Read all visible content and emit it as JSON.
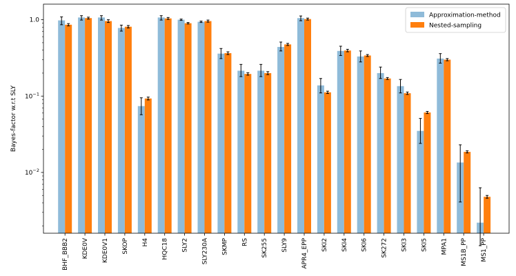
{
  "chart_data": {
    "type": "bar",
    "ylabel": "Bayes-factor w.r.t SLY",
    "yscale": "log",
    "ylim": [
      0.0016,
      1.6
    ],
    "yticks": [
      {
        "value": 0.01,
        "base": "10",
        "exp": "−2"
      },
      {
        "value": 0.1,
        "base": "10",
        "exp": "−1"
      },
      {
        "value": 1,
        "label": "1.0"
      }
    ],
    "legend_position": "top-right",
    "categories": [
      "BHF_BBB2",
      "KDE0V",
      "KDE0V1",
      "SKOP",
      "H4",
      "HQC18",
      "SLY2",
      "SLY230A",
      "SKMP",
      "RS",
      "SK255",
      "SLY9",
      "APR4_EPP",
      "SKI2",
      "SKI4",
      "SKI6",
      "SK272",
      "SKI3",
      "SKI5",
      "MPA1",
      "MS1B_PP",
      "MS1_PP"
    ],
    "series": [
      {
        "name": "Approximation-method",
        "color": "#8fbbd9",
        "values": [
          0.98,
          1.07,
          1.07,
          0.78,
          0.074,
          1.07,
          1.0,
          0.94,
          0.36,
          0.215,
          0.215,
          0.44,
          1.05,
          0.138,
          0.39,
          0.33,
          0.2,
          0.135,
          0.035,
          0.31,
          0.0135,
          0.0022
        ],
        "err_low": [
          0.86,
          0.99,
          0.99,
          0.71,
          0.057,
          0.99,
          0.98,
          0.92,
          0.31,
          0.18,
          0.18,
          0.39,
          0.97,
          0.11,
          0.34,
          0.28,
          0.17,
          0.11,
          0.024,
          0.27,
          0.0041,
          0.0011
        ],
        "err_high": [
          1.09,
          1.13,
          1.13,
          0.85,
          0.095,
          1.13,
          1.02,
          0.96,
          0.42,
          0.26,
          0.26,
          0.51,
          1.12,
          0.17,
          0.45,
          0.39,
          0.24,
          0.165,
          0.051,
          0.36,
          0.023,
          0.0063
        ]
      },
      {
        "name": "Nested-sampling",
        "color": "#ff7f0e",
        "values": [
          0.86,
          1.05,
          0.96,
          0.81,
          0.093,
          1.04,
          0.9,
          0.96,
          0.365,
          0.195,
          0.2,
          0.475,
          1.02,
          0.112,
          0.395,
          0.34,
          0.17,
          0.109,
          0.061,
          0.3,
          0.0186,
          0.0048
        ],
        "err_low": [
          0.83,
          1.02,
          0.92,
          0.78,
          0.089,
          1.01,
          0.88,
          0.93,
          0.35,
          0.188,
          0.191,
          0.46,
          0.99,
          0.108,
          0.38,
          0.33,
          0.165,
          0.105,
          0.059,
          0.29,
          0.018,
          0.0046
        ],
        "err_high": [
          0.89,
          1.08,
          1.0,
          0.84,
          0.097,
          1.07,
          0.92,
          0.99,
          0.38,
          0.202,
          0.209,
          0.49,
          1.05,
          0.116,
          0.41,
          0.35,
          0.175,
          0.113,
          0.063,
          0.31,
          0.0192,
          0.005
        ]
      }
    ]
  }
}
